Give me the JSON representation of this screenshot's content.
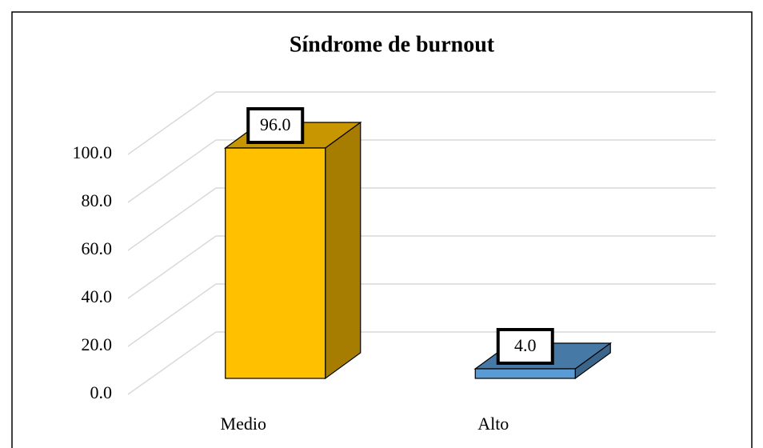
{
  "chart_data": {
    "type": "bar3d",
    "title": "Síndrome de burnout",
    "categories": [
      "Medio",
      "Alto"
    ],
    "values": [
      96.0,
      4.0
    ],
    "value_labels": [
      "96.0",
      "4.0"
    ],
    "colors": [
      "#ffc000",
      "#5b9bd5"
    ],
    "ylim": [
      0,
      100
    ],
    "yticks": [
      {
        "value": 0,
        "label": "0.0"
      },
      {
        "value": 20,
        "label": "20.0"
      },
      {
        "value": 40,
        "label": "40.0"
      },
      {
        "value": 60,
        "label": "60.0"
      },
      {
        "value": 80,
        "label": "80.0"
      },
      {
        "value": 100,
        "label": "100.0"
      }
    ],
    "grid": true
  }
}
